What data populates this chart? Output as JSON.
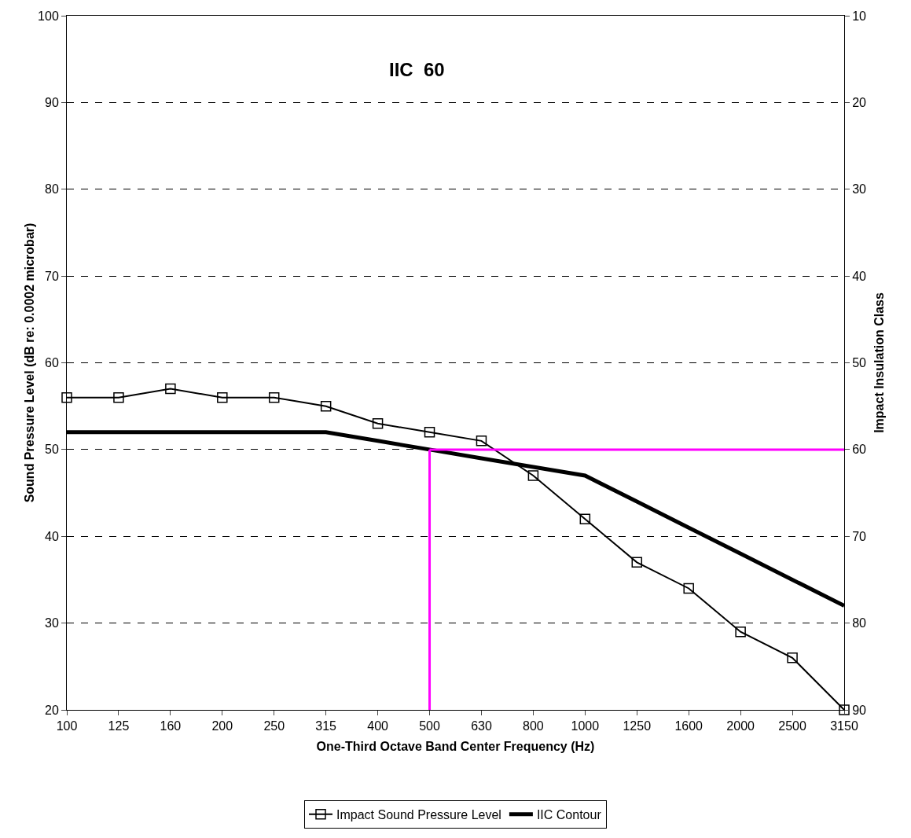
{
  "chart_data": {
    "type": "line",
    "xlabel": "One-Third Octave Band Center Frequency (Hz)",
    "ylabel": "Sound Pressure Level (dB re: 0.0002 microbar)",
    "y2label": "Impact Insulation Class",
    "annotations": [
      "IIC  60"
    ],
    "categories": [
      "100",
      "125",
      "160",
      "200",
      "250",
      "315",
      "400",
      "500",
      "630",
      "800",
      "1000",
      "1250",
      "1600",
      "2000",
      "2500",
      "3150"
    ],
    "series": [
      {
        "name": "Impact Sound Pressure Level",
        "color": "#000000",
        "marker": "square",
        "values": [
          56,
          56,
          57,
          56,
          56,
          55,
          53,
          52,
          51,
          47,
          42,
          37,
          34,
          29,
          26,
          20
        ]
      },
      {
        "name": "IIC Contour",
        "color": "#000000",
        "marker": "none",
        "values": [
          52,
          52,
          52,
          52,
          52,
          52,
          51,
          50,
          49,
          48,
          47,
          44,
          41,
          38,
          35,
          32
        ]
      }
    ],
    "ref_lines": [
      {
        "axis": "x",
        "value": "500",
        "color": "#ff00ff"
      },
      {
        "axis": "y",
        "value": 50,
        "color": "#ff00ff"
      }
    ],
    "ylim": [
      20,
      100
    ],
    "yticks": [
      20,
      30,
      40,
      50,
      60,
      70,
      80,
      90,
      100
    ],
    "y2lim": [
      90,
      10
    ],
    "y2ticks": [
      10,
      20,
      30,
      40,
      50,
      60,
      70,
      80,
      90
    ],
    "grid": "y",
    "legend": "bottom",
    "line_style": "solid"
  }
}
